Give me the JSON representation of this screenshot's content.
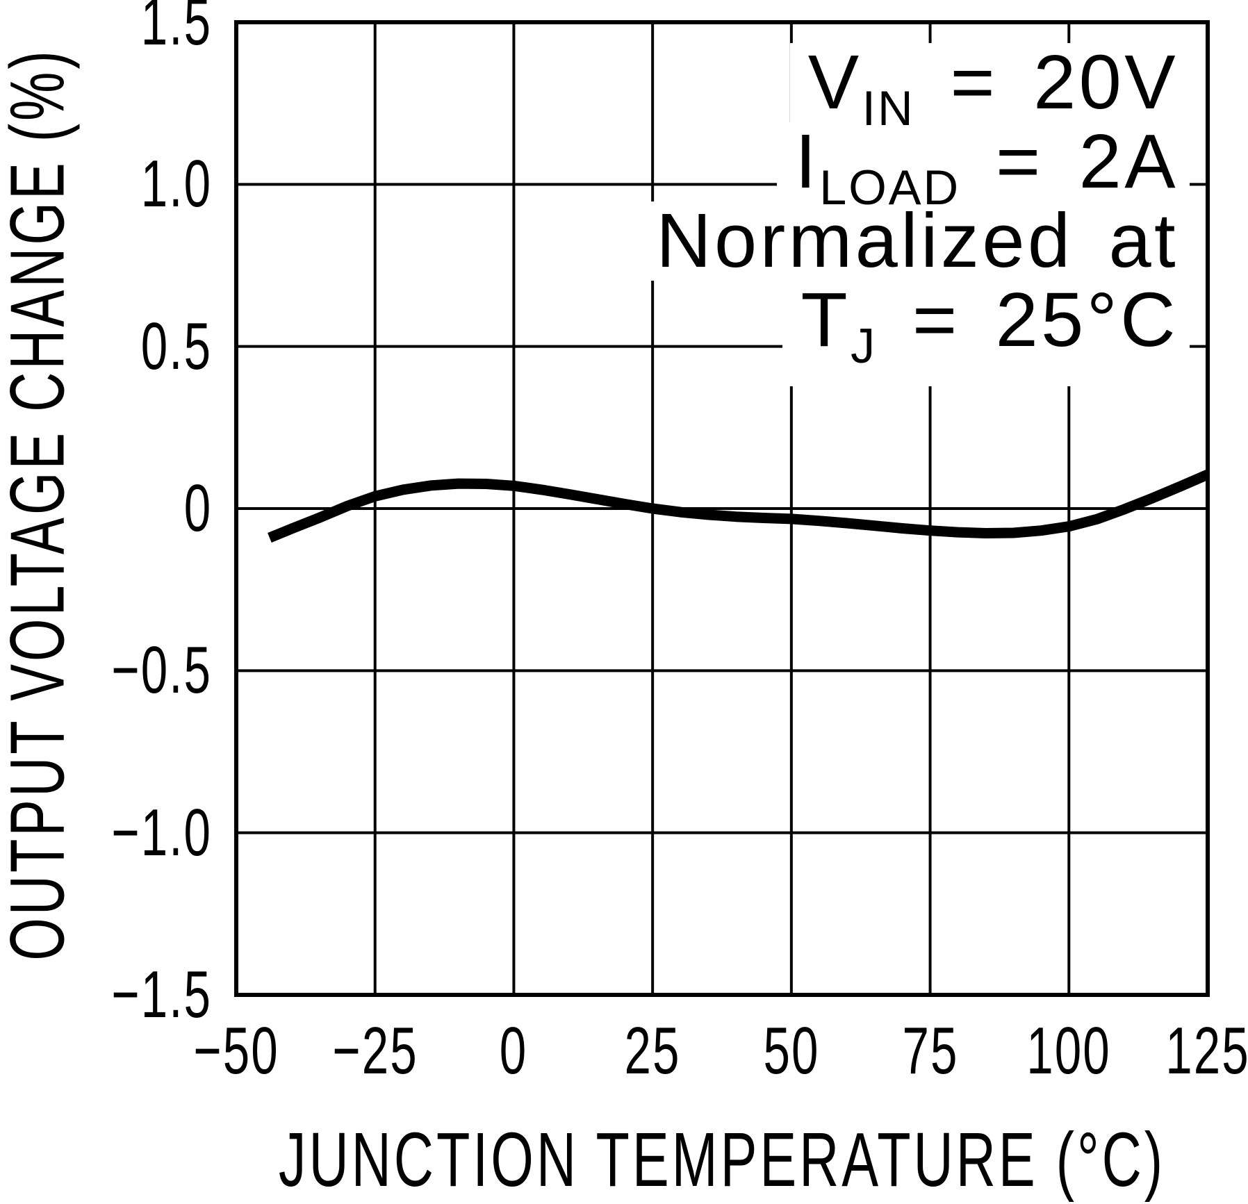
{
  "chart_data": {
    "type": "line",
    "title": "",
    "xlabel": "JUNCTION TEMPERATURE (°C)",
    "ylabel": "OUTPUT VOLTAGE CHANGE (%)",
    "xlim": [
      -50,
      125
    ],
    "ylim": [
      -1.5,
      1.5
    ],
    "x_tick_step": 25,
    "y_tick_step": 0.5,
    "grid": true,
    "legend": "none",
    "x_ticks": [
      {
        "v": -50,
        "label": "−50"
      },
      {
        "v": -25,
        "label": "−25"
      },
      {
        "v": 0,
        "label": "0"
      },
      {
        "v": 25,
        "label": "25"
      },
      {
        "v": 50,
        "label": "50"
      },
      {
        "v": 75,
        "label": "75"
      },
      {
        "v": 100,
        "label": "100"
      },
      {
        "v": 125,
        "label": "125"
      }
    ],
    "y_ticks": [
      {
        "v": 1.5,
        "label": "1.5"
      },
      {
        "v": 1.0,
        "label": "1.0"
      },
      {
        "v": 0.5,
        "label": "0.5"
      },
      {
        "v": 0,
        "label": "0"
      },
      {
        "v": -0.5,
        "label": "−0.5"
      },
      {
        "v": -1.0,
        "label": "−1.0"
      },
      {
        "v": -1.5,
        "label": "−1.5"
      }
    ],
    "series": [
      {
        "name": "output-voltage-change",
        "color": "#000000",
        "x": [
          -44,
          -40,
          -35,
          -30,
          -25,
          -20,
          -15,
          -10,
          -5,
          0,
          5,
          10,
          15,
          20,
          25,
          30,
          35,
          40,
          45,
          50,
          55,
          60,
          65,
          70,
          75,
          80,
          85,
          90,
          95,
          100,
          105,
          110,
          115,
          120,
          125
        ],
        "y": [
          -0.09,
          -0.062,
          -0.028,
          0.008,
          0.038,
          0.058,
          0.071,
          0.077,
          0.076,
          0.07,
          0.058,
          0.044,
          0.029,
          0.014,
          0.0,
          -0.011,
          -0.019,
          -0.025,
          -0.029,
          -0.032,
          -0.038,
          -0.045,
          -0.053,
          -0.061,
          -0.068,
          -0.073,
          -0.076,
          -0.075,
          -0.068,
          -0.055,
          -0.033,
          -0.002,
          0.032,
          0.068,
          0.105
        ]
      }
    ],
    "annotations": [
      {
        "pre": "V",
        "sub": "IN",
        "post": " = 20V"
      },
      {
        "pre": "I",
        "sub": "LOAD",
        "post": " = 2A"
      },
      {
        "text": "Normalized at"
      },
      {
        "pre": "T",
        "sub": "J",
        "post": " = 25°C"
      }
    ]
  },
  "colors": {
    "foreground": "#000000",
    "background": "#ffffff"
  }
}
